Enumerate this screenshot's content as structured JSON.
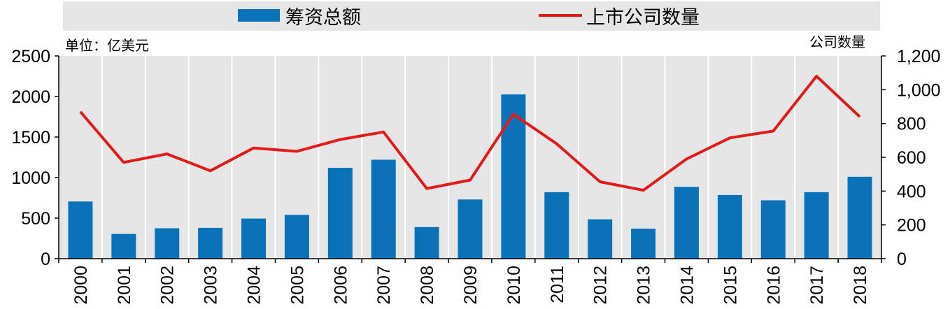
{
  "chart_data": {
    "type": "bar",
    "categories": [
      "2000",
      "2001",
      "2002",
      "2003",
      "2004",
      "2005",
      "2006",
      "2007",
      "2008",
      "2009",
      "2010",
      "2011",
      "2012",
      "2013",
      "2014",
      "2015",
      "2016",
      "2017",
      "2018"
    ],
    "series": [
      {
        "name": "筹资总额",
        "type": "bar",
        "axis": "left",
        "color": "#0a72b8",
        "values": [
          705,
          305,
          375,
          380,
          495,
          540,
          1120,
          1220,
          390,
          730,
          2025,
          820,
          485,
          370,
          885,
          785,
          720,
          820,
          1010
        ]
      },
      {
        "name": "上市公司数量",
        "type": "line",
        "axis": "right",
        "color": "#e41a1a",
        "values": [
          870,
          570,
          620,
          520,
          655,
          635,
          705,
          750,
          415,
          465,
          855,
          680,
          455,
          405,
          590,
          715,
          755,
          1080,
          840
        ]
      }
    ],
    "left_axis": {
      "label": "单位：亿美元",
      "range": [
        0,
        2500
      ],
      "ticks": [
        "0",
        "500",
        "1000",
        "1500",
        "2000",
        "2500"
      ]
    },
    "right_axis": {
      "label": "公司数量",
      "range": [
        0,
        1200
      ],
      "ticks": [
        "0",
        "200",
        "400",
        "600",
        "800",
        "1,000",
        "1,200"
      ]
    },
    "grid": "vertical",
    "legend_position": "top",
    "plot_background": "#e6e6e6",
    "legend_background": "#e6e6e6"
  }
}
